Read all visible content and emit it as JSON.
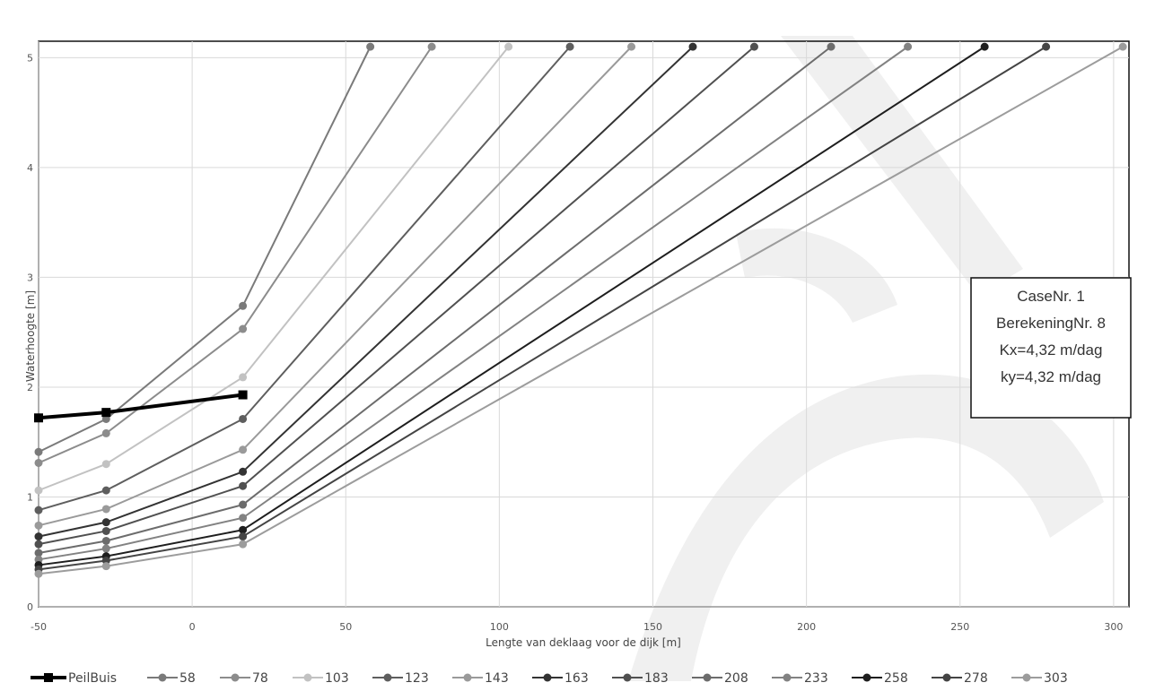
{
  "chart_data": {
    "type": "line",
    "title": "",
    "xlabel": "Lengte  van deklaag voor de dijk [m]",
    "ylabel": "Waterhoogte [m]",
    "xlim": [
      -50,
      305
    ],
    "ylim": [
      0,
      5.15
    ],
    "xticks": [
      -50,
      0,
      50,
      100,
      150,
      200,
      250,
      300
    ],
    "yticks": [
      0,
      1,
      2,
      3,
      4,
      5
    ],
    "grid": true,
    "legend_position": "bottom",
    "annotation": {
      "lines": [
        "CaseNr. 1",
        "BerekeningNr. 8",
        "Kx=4,32 m/dag",
        "ky=4,32 m/dag"
      ]
    },
    "series": [
      {
        "name": "PeilBuis",
        "color": "#000000",
        "marker": "square",
        "x": [
          -50,
          -28,
          16.5
        ],
        "y": [
          1.72,
          1.77,
          1.93
        ]
      },
      {
        "name": "58",
        "color": "#7a7a7a",
        "marker": "circle",
        "x": [
          -50,
          -28,
          16.5,
          58
        ],
        "y": [
          1.41,
          1.71,
          2.74,
          5.1
        ]
      },
      {
        "name": "78",
        "color": "#8c8c8c",
        "marker": "circle",
        "x": [
          -50,
          -28,
          16.5,
          78
        ],
        "y": [
          1.31,
          1.58,
          2.53,
          5.1
        ]
      },
      {
        "name": "103",
        "color": "#c2c2c2",
        "marker": "circle",
        "x": [
          -50,
          -28,
          16.5,
          103
        ],
        "y": [
          1.06,
          1.3,
          2.09,
          5.1
        ]
      },
      {
        "name": "123",
        "color": "#5e5e5e",
        "marker": "circle",
        "x": [
          -50,
          -28,
          16.5,
          123
        ],
        "y": [
          0.88,
          1.06,
          1.71,
          5.1
        ]
      },
      {
        "name": "143",
        "color": "#9a9a9a",
        "marker": "circle",
        "x": [
          -50,
          -28,
          16.5,
          143
        ],
        "y": [
          0.74,
          0.89,
          1.43,
          5.1
        ]
      },
      {
        "name": "163",
        "color": "#333333",
        "marker": "circle",
        "x": [
          -50,
          -28,
          16.5,
          163
        ],
        "y": [
          0.64,
          0.77,
          1.23,
          5.1
        ]
      },
      {
        "name": "183",
        "color": "#505050",
        "marker": "circle",
        "x": [
          -50,
          -28,
          16.5,
          183
        ],
        "y": [
          0.57,
          0.69,
          1.1,
          5.1
        ]
      },
      {
        "name": "208",
        "color": "#6c6c6c",
        "marker": "circle",
        "x": [
          -50,
          -28,
          16.5,
          208
        ],
        "y": [
          0.49,
          0.6,
          0.93,
          5.1
        ]
      },
      {
        "name": "233",
        "color": "#828282",
        "marker": "circle",
        "x": [
          -50,
          -28,
          16.5,
          233
        ],
        "y": [
          0.43,
          0.53,
          0.81,
          5.1
        ]
      },
      {
        "name": "258",
        "color": "#1e1e1e",
        "marker": "circle",
        "x": [
          -50,
          -28,
          16.5,
          258
        ],
        "y": [
          0.38,
          0.46,
          0.7,
          5.1
        ]
      },
      {
        "name": "278",
        "color": "#444444",
        "marker": "circle",
        "x": [
          -50,
          -28,
          16.5,
          278
        ],
        "y": [
          0.34,
          0.42,
          0.64,
          5.1
        ]
      },
      {
        "name": "303",
        "color": "#9c9c9c",
        "marker": "circle",
        "x": [
          -50,
          -28,
          16.5,
          303
        ],
        "y": [
          0.3,
          0.37,
          0.57,
          5.1
        ]
      }
    ]
  }
}
